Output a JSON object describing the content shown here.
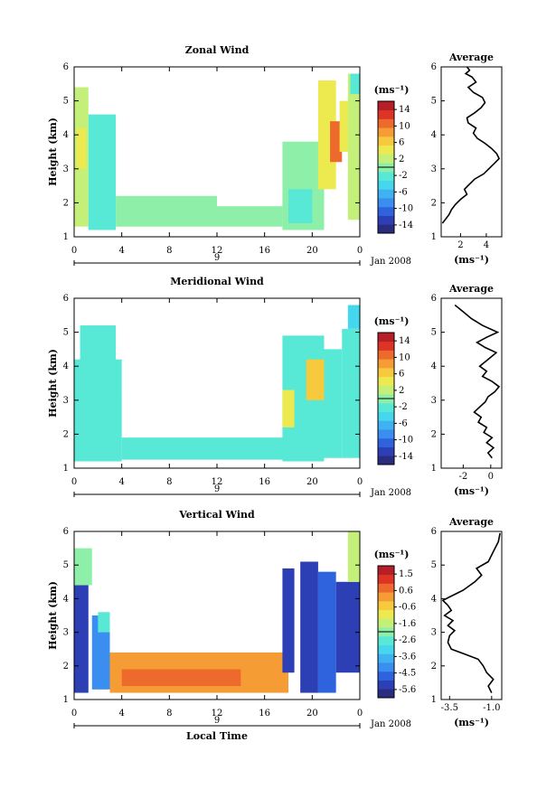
{
  "chart_data": [
    {
      "type": "heatmap",
      "title": "Zonal Wind",
      "ylabel": "Height (km)",
      "xticks": [
        "0",
        "4",
        "8",
        "12",
        "16",
        "20",
        "0"
      ],
      "yticks": [
        "1",
        "2",
        "3",
        "4",
        "5",
        "6"
      ],
      "ylim": [
        1,
        6
      ],
      "date_day": "9",
      "date_label": "Jan 2008",
      "colorbar": {
        "unit": "(ms⁻¹)",
        "ticks": [
          "14",
          "10",
          "6",
          "2",
          "-2",
          "-6",
          "-10",
          "-14"
        ],
        "range": [
          -16,
          16
        ]
      },
      "profile": {
        "title": "Average",
        "xticks": [
          "2",
          "4"
        ],
        "xunit": "(ms⁻¹)",
        "xlim": [
          0.5,
          5.2
        ],
        "yticks": [
          "1",
          "2",
          "3",
          "4",
          "5",
          "6"
        ],
        "x": [
          0.6,
          0.8,
          1.1,
          1.3,
          1.6,
          2.0,
          2.5,
          2.3,
          2.7,
          3.1,
          3.8,
          4.2,
          4.6,
          5.0,
          4.8,
          4.4,
          3.9,
          3.3,
          3.0,
          3.2,
          2.6,
          2.5,
          3.1,
          3.6,
          3.9,
          3.7,
          3.0,
          2.6,
          3.2,
          2.9,
          2.4,
          2.7,
          2.5
        ],
        "y": [
          1.4,
          1.5,
          1.65,
          1.8,
          1.95,
          2.1,
          2.25,
          2.4,
          2.55,
          2.7,
          2.85,
          3.0,
          3.15,
          3.3,
          3.45,
          3.6,
          3.75,
          3.9,
          4.05,
          4.2,
          4.35,
          4.5,
          4.65,
          4.8,
          4.95,
          5.1,
          5.25,
          5.4,
          5.55,
          5.7,
          5.8,
          5.9,
          6.0
        ]
      }
    },
    {
      "type": "heatmap",
      "title": "Meridional Wind",
      "ylabel": "Height (km)",
      "xticks": [
        "0",
        "4",
        "8",
        "12",
        "16",
        "20",
        "0"
      ],
      "yticks": [
        "1",
        "2",
        "3",
        "4",
        "5",
        "6"
      ],
      "ylim": [
        1,
        6
      ],
      "date_day": "9",
      "date_label": "Jan 2008",
      "colorbar": {
        "unit": "(ms⁻¹)",
        "ticks": [
          "14",
          "10",
          "6",
          "2",
          "-2",
          "-6",
          "-10",
          "-14"
        ],
        "range": [
          -16,
          16
        ]
      },
      "profile": {
        "title": "Average",
        "xticks": [
          "-2",
          "0"
        ],
        "xunit": "(ms⁻¹)",
        "xlim": [
          -3.6,
          0.8
        ],
        "yticks": [
          "1",
          "2",
          "3",
          "4",
          "5",
          "6"
        ],
        "x": [
          0.1,
          -0.2,
          0.2,
          -0.3,
          0.1,
          -0.5,
          -0.3,
          -0.9,
          -0.7,
          -1.2,
          -0.8,
          -0.4,
          -0.2,
          0.3,
          0.6,
          0.1,
          -0.6,
          -0.3,
          -0.8,
          -0.2,
          0.4,
          -0.4,
          -1.0,
          -0.3,
          0.5,
          -0.6,
          -1.4,
          -2.0,
          -2.6
        ],
        "y": [
          1.3,
          1.45,
          1.6,
          1.75,
          1.9,
          2.05,
          2.2,
          2.35,
          2.5,
          2.65,
          2.8,
          2.95,
          3.1,
          3.25,
          3.4,
          3.55,
          3.7,
          3.85,
          4.0,
          4.2,
          4.4,
          4.55,
          4.7,
          4.85,
          5.0,
          5.2,
          5.4,
          5.6,
          5.8
        ]
      }
    },
    {
      "type": "heatmap",
      "title": "Vertical Wind",
      "ylabel": "Height (km)",
      "xlabel": "Local Time",
      "xticks": [
        "0",
        "4",
        "8",
        "12",
        "16",
        "20",
        "0"
      ],
      "yticks": [
        "1",
        "2",
        "3",
        "4",
        "5",
        "6"
      ],
      "ylim": [
        1,
        6
      ],
      "date_day": "9",
      "date_label": "Jan 2008",
      "colorbar": {
        "unit": "(ms⁻¹)",
        "ticks": [
          "1.5",
          "0.6",
          "-0.6",
          "-1.6",
          "-2.6",
          "-3.6",
          "-4.5",
          "-5.6"
        ],
        "range": [
          -6,
          2
        ]
      },
      "profile": {
        "title": "Average",
        "xticks": [
          "-3.5",
          "-1.0"
        ],
        "xunit": "(ms⁻¹)",
        "xlim": [
          -4.0,
          -0.4
        ],
        "yticks": [
          "1",
          "2",
          "3",
          "4",
          "5",
          "6"
        ],
        "x": [
          -1.0,
          -1.2,
          -0.9,
          -1.3,
          -1.5,
          -1.8,
          -2.6,
          -3.4,
          -3.6,
          -3.5,
          -3.2,
          -3.6,
          -3.3,
          -3.8,
          -3.4,
          -3.6,
          -3.9,
          -3.5,
          -2.7,
          -2.0,
          -1.6,
          -1.9,
          -1.2,
          -0.9,
          -0.6,
          -0.5
        ],
        "y": [
          1.2,
          1.4,
          1.6,
          1.8,
          2.0,
          2.2,
          2.35,
          2.5,
          2.7,
          2.9,
          3.05,
          3.2,
          3.35,
          3.5,
          3.65,
          3.8,
          3.95,
          4.05,
          4.25,
          4.5,
          4.7,
          4.9,
          5.1,
          5.4,
          5.7,
          5.95
        ]
      }
    }
  ]
}
